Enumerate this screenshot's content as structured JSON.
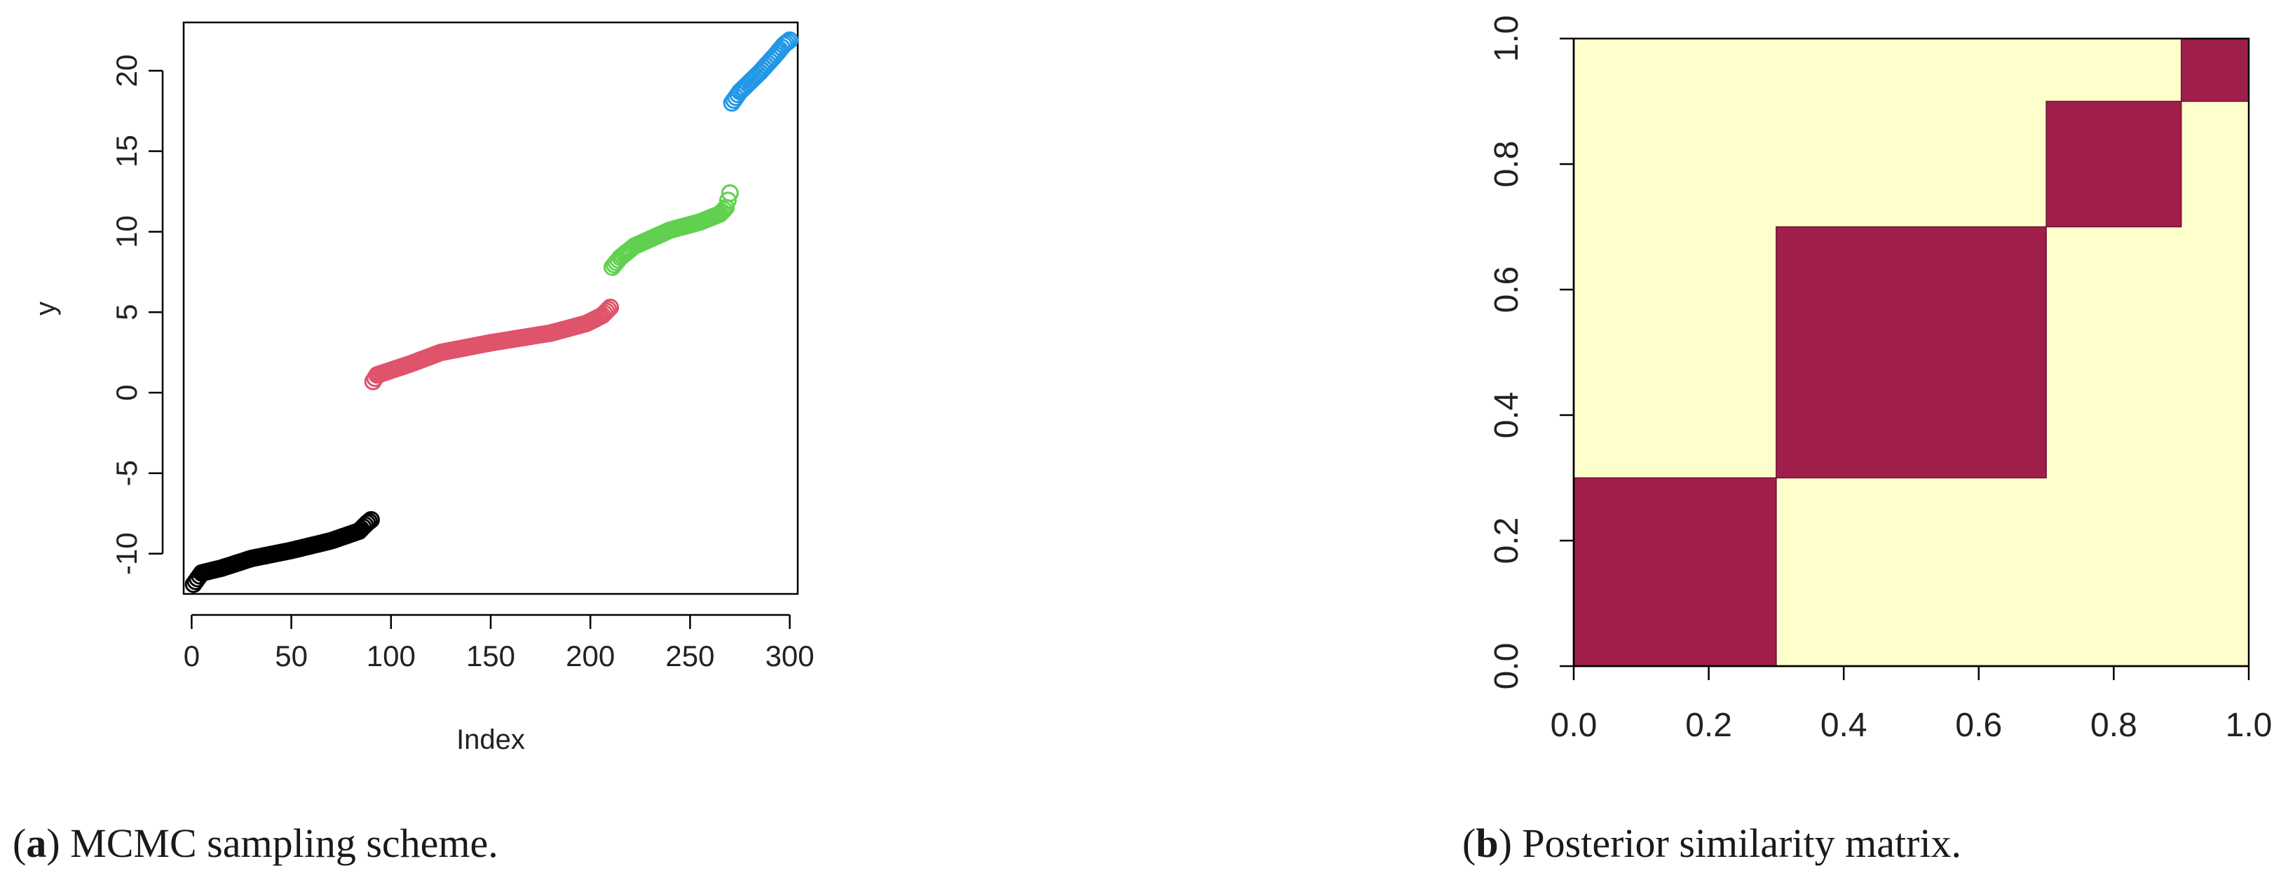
{
  "chart_data": [
    {
      "type": "scatter",
      "caption": {
        "label": "a",
        "text": ") MCMC sampling scheme."
      },
      "xlabel": "Index",
      "ylabel": "y",
      "xlim": [
        -4,
        304
      ],
      "ylim": [
        -12.5,
        23.0
      ],
      "x_ticks": [
        0,
        50,
        100,
        150,
        200,
        250,
        300
      ],
      "y_ticks": [
        -10,
        -5,
        0,
        5,
        10,
        15,
        20
      ],
      "marker": "open-circle",
      "series": [
        {
          "color": "#000000",
          "x_range": [
            1,
            90
          ],
          "segments": [
            [
              1,
              -11.9
            ],
            [
              5,
              -11.2
            ],
            [
              15,
              -10.9
            ],
            [
              30,
              -10.3
            ],
            [
              50,
              -9.8
            ],
            [
              70,
              -9.2
            ],
            [
              84,
              -8.6
            ],
            [
              88,
              -8.1
            ],
            [
              90,
              -7.9
            ]
          ]
        },
        {
          "color": "#DF536B",
          "x_range": [
            91,
            210
          ],
          "segments": [
            [
              91,
              0.7
            ],
            [
              93,
              1.1
            ],
            [
              110,
              1.8
            ],
            [
              125,
              2.5
            ],
            [
              150,
              3.1
            ],
            [
              180,
              3.7
            ],
            [
              198,
              4.3
            ],
            [
              206,
              4.8
            ],
            [
              210,
              5.3
            ]
          ]
        },
        {
          "color": "#61D04F",
          "x_range": [
            211,
            270
          ],
          "segments": [
            [
              211,
              7.8
            ],
            [
              215,
              8.4
            ],
            [
              222,
              9.1
            ],
            [
              240,
              10.1
            ],
            [
              255,
              10.6
            ],
            [
              265,
              11.1
            ],
            [
              268,
              11.5
            ],
            [
              270,
              12.4
            ]
          ]
        },
        {
          "color": "#2297E6",
          "x_range": [
            271,
            300
          ],
          "segments": [
            [
              271,
              18.0
            ],
            [
              275,
              18.7
            ],
            [
              285,
              19.9
            ],
            [
              293,
              21.0
            ],
            [
              297,
              21.6
            ],
            [
              300,
              21.9
            ]
          ]
        }
      ]
    },
    {
      "type": "heatmap",
      "caption": {
        "label": "b",
        "text": ") Posterior similarity matrix."
      },
      "xlim": [
        0,
        1
      ],
      "ylim": [
        0,
        1
      ],
      "x_ticks": [
        0.0,
        0.2,
        0.4,
        0.6,
        0.8,
        1.0
      ],
      "y_ticks": [
        0.0,
        0.2,
        0.4,
        0.6,
        0.8,
        1.0
      ],
      "background_color": "#FFFFCC",
      "block_color": "#A01E4C",
      "blocks": [
        [
          0.0,
          0.3
        ],
        [
          0.3,
          0.7
        ],
        [
          0.7,
          0.9
        ],
        [
          0.9,
          1.0
        ]
      ]
    }
  ]
}
